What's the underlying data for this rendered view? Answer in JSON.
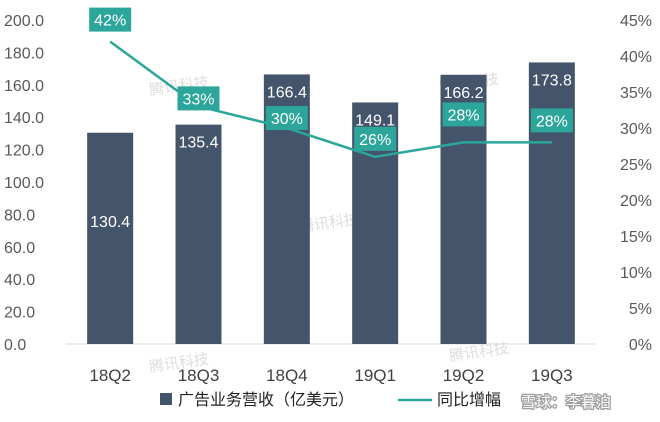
{
  "chart_data": {
    "type": "bar+line",
    "categories": [
      "18Q2",
      "18Q3",
      "18Q4",
      "19Q1",
      "19Q2",
      "19Q3"
    ],
    "series": [
      {
        "name": "广告业务营收（亿美元）",
        "type": "bar",
        "axis": "left",
        "values": [
          130.4,
          135.4,
          166.4,
          149.1,
          166.2,
          173.8
        ],
        "labels": [
          "130.4",
          "135.4",
          "166.4",
          "149.1",
          "166.2",
          "173.8"
        ],
        "color": "#44546a"
      },
      {
        "name": "同比增幅",
        "type": "line",
        "axis": "right",
        "values": [
          42,
          33,
          30,
          26,
          28,
          28
        ],
        "labels": [
          "42%",
          "33%",
          "30%",
          "26%",
          "28%",
          "28%"
        ],
        "color": "#2ca69a"
      }
    ],
    "y_left": {
      "min": 0,
      "max": 200,
      "step": 20,
      "ticks": [
        "0.0",
        "20.0",
        "40.0",
        "60.0",
        "80.0",
        "100.0",
        "120.0",
        "140.0",
        "160.0",
        "180.0",
        "200.0"
      ]
    },
    "y_right": {
      "min": 0,
      "max": 45,
      "step": 5,
      "ticks": [
        "0%",
        "5%",
        "10%",
        "15%",
        "20%",
        "25%",
        "30%",
        "35%",
        "40%",
        "45%"
      ]
    },
    "legend_position": "bottom",
    "watermark": "腾讯科技",
    "credit": "雪球：李暮泊"
  }
}
